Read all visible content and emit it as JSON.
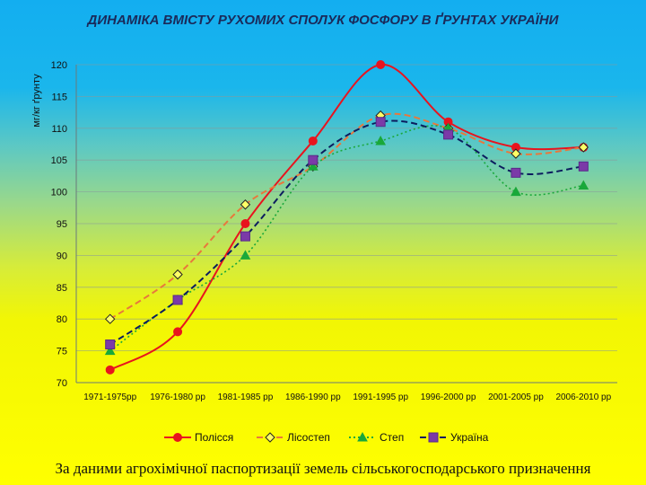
{
  "title": "ДИНАМІКА ВМІСТУ РУХОМИХ СПОЛУК ФОСФОРУ В ҐРУНТАХ УКРАЇНИ",
  "caption": "За даними агрохімічної паспортизації земель сільськогосподарського призначення",
  "chart_data": {
    "type": "line",
    "title": "ДИНАМІКА ВМІСТУ РУХОМИХ СПОЛУК ФОСФОРУ В ҐРУНТАХ УКРАЇНИ",
    "ylabel": "мг/кг ґрунту",
    "xlabel": "",
    "ylim": [
      70,
      120
    ],
    "yticks": [
      70,
      75,
      80,
      85,
      90,
      95,
      100,
      105,
      110,
      115,
      120
    ],
    "grid": true,
    "legend": "bottom",
    "categories": [
      "1971-1975рр",
      "1976-1980 рр",
      "1981-1985 рр",
      "1986-1990 рр",
      "1991-1995 рр",
      "1996-2000 рр",
      "2001-2005 рр",
      "2006-2010 рр"
    ],
    "series": [
      {
        "name": "Полісся",
        "values": [
          72,
          78,
          95,
          108,
          120,
          111,
          107,
          107
        ],
        "color": "#e8141e",
        "marker": "circle",
        "dash": "solid"
      },
      {
        "name": "Лісостеп",
        "values": [
          80,
          87,
          98,
          104,
          112,
          110,
          106,
          107
        ],
        "color": "#e8783c",
        "marker": "diamond",
        "dash": "dashed"
      },
      {
        "name": "Степ",
        "values": [
          75,
          83,
          90,
          104,
          108,
          110,
          100,
          101
        ],
        "color": "#19a83a",
        "marker": "triangle",
        "dash": "dotted"
      },
      {
        "name": "Україна",
        "values": [
          76,
          83,
          93,
          105,
          111,
          109,
          103,
          104
        ],
        "color": "#0c1c5e",
        "marker": "square",
        "dash": "dashed"
      }
    ]
  }
}
